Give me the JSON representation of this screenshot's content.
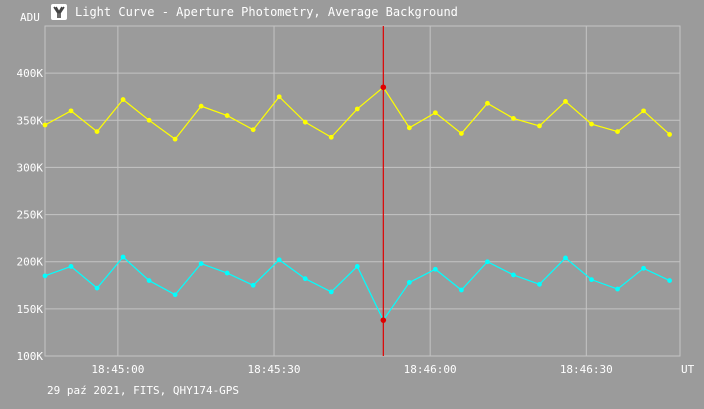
{
  "window": {
    "title": "Light Curve - Aperture Photometry, Average Background",
    "icon": "telescope-app-icon"
  },
  "footer": {
    "text": "29 paź 2021, FITS, QHY174-GPS"
  },
  "colors": {
    "background": "#9b9b9b",
    "grid": "#c4c4c4",
    "target_series": "#ffff00",
    "comparison_series": "#00ffff",
    "cursor_line": "#e00000"
  },
  "chart_data": {
    "type": "line",
    "y_unit_label": "ADU",
    "x_unit_label": "UT",
    "ylim": [
      100000,
      450000
    ],
    "yticks": [
      {
        "value": 100000,
        "label": "100K"
      },
      {
        "value": 150000,
        "label": "150K"
      },
      {
        "value": 200000,
        "label": "200K"
      },
      {
        "value": 250000,
        "label": "250K"
      },
      {
        "value": 300000,
        "label": "300K"
      },
      {
        "value": 350000,
        "label": "350K"
      },
      {
        "value": 400000,
        "label": "400K"
      }
    ],
    "xlim": [
      "18:44:46",
      "18:46:48"
    ],
    "xticks": [
      {
        "value": "18:45:00",
        "label": "18:45:00"
      },
      {
        "value": "18:45:30",
        "label": "18:45:30"
      },
      {
        "value": "18:46:00",
        "label": "18:46:00"
      },
      {
        "value": "18:46:30",
        "label": "18:46:30"
      }
    ],
    "grid": true,
    "cursor": {
      "time": "18:45:51",
      "target_value": 385000,
      "comparison_value": 138000
    },
    "series": [
      {
        "color": "#ffff00",
        "x": [
          "18:44:46",
          "18:44:51",
          "18:44:56",
          "18:45:01",
          "18:45:06",
          "18:45:11",
          "18:45:16",
          "18:45:21",
          "18:45:26",
          "18:45:31",
          "18:45:36",
          "18:45:41",
          "18:45:46",
          "18:45:51",
          "18:45:56",
          "18:46:01",
          "18:46:06",
          "18:46:11",
          "18:46:16",
          "18:46:21",
          "18:46:26",
          "18:46:31",
          "18:46:36",
          "18:46:41",
          "18:46:46"
        ],
        "values": [
          345000,
          360000,
          338000,
          372000,
          350000,
          330000,
          365000,
          355000,
          340000,
          375000,
          348000,
          332000,
          362000,
          385000,
          342000,
          358000,
          336000,
          368000,
          352000,
          344000,
          370000,
          346000,
          338000,
          360000,
          335000
        ]
      },
      {
        "color": "#00ffff",
        "x": [
          "18:44:46",
          "18:44:51",
          "18:44:56",
          "18:45:01",
          "18:45:06",
          "18:45:11",
          "18:45:16",
          "18:45:21",
          "18:45:26",
          "18:45:31",
          "18:45:36",
          "18:45:41",
          "18:45:46",
          "18:45:51",
          "18:45:56",
          "18:46:01",
          "18:46:06",
          "18:46:11",
          "18:46:16",
          "18:46:21",
          "18:46:26",
          "18:46:31",
          "18:46:36",
          "18:46:41",
          "18:46:46"
        ],
        "values": [
          185000,
          195000,
          172000,
          205000,
          180000,
          165000,
          198000,
          188000,
          175000,
          202000,
          182000,
          168000,
          195000,
          138000,
          178000,
          192000,
          170000,
          200000,
          186000,
          176000,
          204000,
          181000,
          171000,
          193000,
          180000
        ]
      }
    ]
  }
}
